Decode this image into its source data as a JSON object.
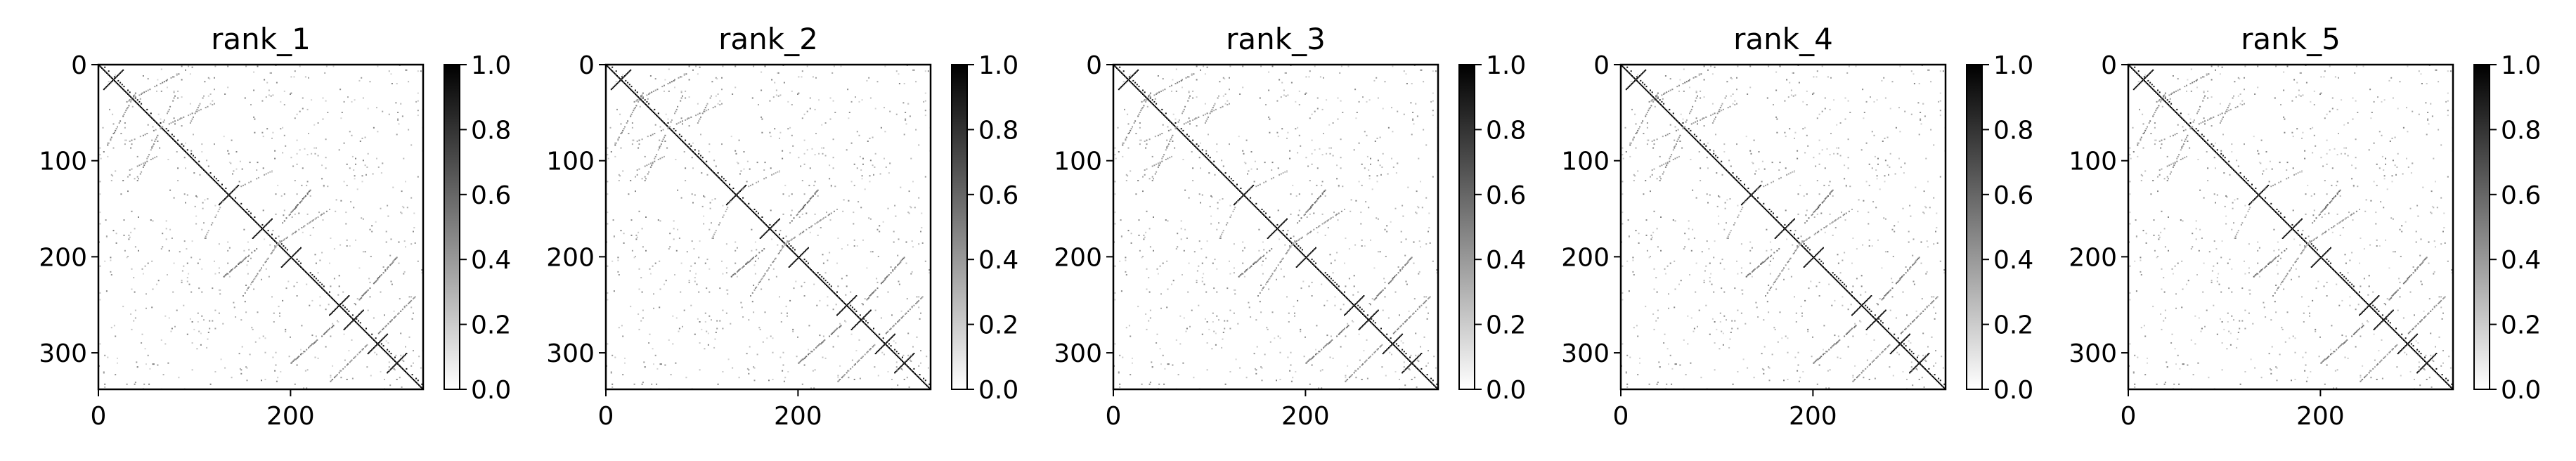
{
  "figure": {
    "background": "#ffffff",
    "axes_color": "#000000",
    "colormap": [
      "#ffffff",
      "#000000"
    ]
  },
  "chart_data": [
    {
      "type": "heatmap",
      "title": "rank_1",
      "xlabel": "",
      "ylabel": "",
      "xlim": [
        0,
        338
      ],
      "ylim": [
        338,
        0
      ],
      "xticks": [
        "0",
        "200"
      ],
      "yticks": [
        "0",
        "100",
        "200",
        "300"
      ],
      "colorbar": {
        "range": [
          0.0,
          1.0
        ],
        "ticks": [
          "0.0",
          "0.2",
          "0.4",
          "0.6",
          "0.8",
          "1.0"
        ]
      },
      "grid": false,
      "matrix_size": 338
    },
    {
      "type": "heatmap",
      "title": "rank_2",
      "xlabel": "",
      "ylabel": "",
      "xlim": [
        0,
        338
      ],
      "ylim": [
        338,
        0
      ],
      "xticks": [
        "0",
        "200"
      ],
      "yticks": [
        "0",
        "100",
        "200",
        "300"
      ],
      "colorbar": {
        "range": [
          0.0,
          1.0
        ],
        "ticks": [
          "0.0",
          "0.2",
          "0.4",
          "0.6",
          "0.8",
          "1.0"
        ]
      },
      "grid": false,
      "matrix_size": 338
    },
    {
      "type": "heatmap",
      "title": "rank_3",
      "xlabel": "",
      "ylabel": "",
      "xlim": [
        0,
        338
      ],
      "ylim": [
        338,
        0
      ],
      "xticks": [
        "0",
        "200"
      ],
      "yticks": [
        "0",
        "100",
        "200",
        "300"
      ],
      "colorbar": {
        "range": [
          0.0,
          1.0
        ],
        "ticks": [
          "0.0",
          "0.2",
          "0.4",
          "0.6",
          "0.8",
          "1.0"
        ]
      },
      "grid": false,
      "matrix_size": 338
    },
    {
      "type": "heatmap",
      "title": "rank_4",
      "xlabel": "",
      "ylabel": "",
      "xlim": [
        0,
        338
      ],
      "ylim": [
        338,
        0
      ],
      "xticks": [
        "0",
        "200"
      ],
      "yticks": [
        "0",
        "100",
        "200",
        "300"
      ],
      "colorbar": {
        "range": [
          0.0,
          1.0
        ],
        "ticks": [
          "0.0",
          "0.2",
          "0.4",
          "0.6",
          "0.8",
          "1.0"
        ]
      },
      "grid": false,
      "matrix_size": 338
    },
    {
      "type": "heatmap",
      "title": "rank_5",
      "xlabel": "",
      "ylabel": "",
      "xlim": [
        0,
        338
      ],
      "ylim": [
        338,
        0
      ],
      "xticks": [
        "0",
        "200"
      ],
      "yticks": [
        "0",
        "100",
        "200",
        "300"
      ],
      "colorbar": {
        "range": [
          0.0,
          1.0
        ],
        "ticks": [
          "0.0",
          "0.2",
          "0.4",
          "0.6",
          "0.8",
          "1.0"
        ]
      },
      "grid": false,
      "matrix_size": 338
    }
  ]
}
